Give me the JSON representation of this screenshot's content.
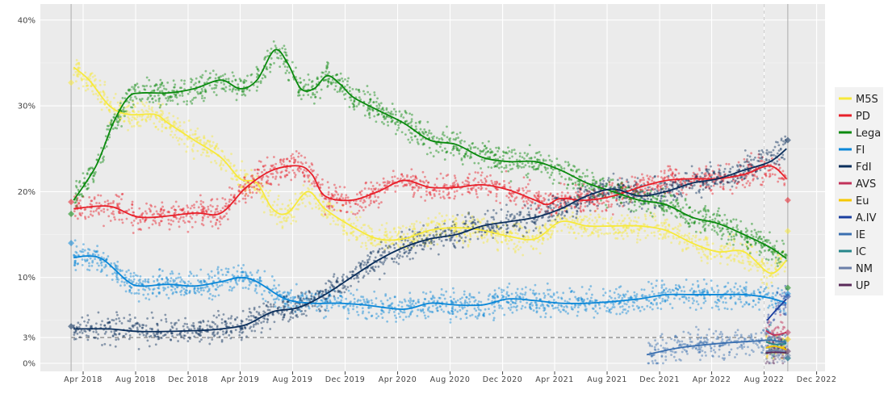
{
  "chart_data": {
    "type": "line",
    "title": "",
    "xlabel": "",
    "ylabel": "",
    "ylim": [
      0,
      40
    ],
    "xlim": [
      "2018-01-01",
      "2022-12-31"
    ],
    "grid": true,
    "legend_position": "right",
    "y_ticks": [
      {
        "v": 0,
        "label": "0%"
      },
      {
        "v": 3,
        "label": "3%"
      },
      {
        "v": 10,
        "label": "10%"
      },
      {
        "v": 20,
        "label": "20%"
      },
      {
        "v": 30,
        "label": "30%"
      },
      {
        "v": 40,
        "label": "40%"
      }
    ],
    "x_ticks": [
      {
        "date": "2018-04-01",
        "label": "Apr 2018"
      },
      {
        "date": "2018-08-01",
        "label": "Aug 2018"
      },
      {
        "date": "2018-12-01",
        "label": "Dec 2018"
      },
      {
        "date": "2019-04-01",
        "label": "Apr 2019"
      },
      {
        "date": "2019-08-01",
        "label": "Aug 2019"
      },
      {
        "date": "2019-12-01",
        "label": "Dec 2019"
      },
      {
        "date": "2020-04-01",
        "label": "Apr 2020"
      },
      {
        "date": "2020-08-01",
        "label": "Aug 2020"
      },
      {
        "date": "2020-12-01",
        "label": "Dec 2020"
      },
      {
        "date": "2021-04-01",
        "label": "Apr 2021"
      },
      {
        "date": "2021-08-01",
        "label": "Aug 2021"
      },
      {
        "date": "2021-12-01",
        "label": "Dec 2021"
      },
      {
        "date": "2022-04-01",
        "label": "Apr 2022"
      },
      {
        "date": "2022-08-01",
        "label": "Aug 2022"
      },
      {
        "date": "2022-12-01",
        "label": "Dec 2022"
      }
    ],
    "threshold": 3,
    "election_dates": [
      "2018-03-04",
      "2022-09-25"
    ],
    "series": [
      {
        "name": "M5S",
        "color": "#f7e93b",
        "points": [
          [
            "2018-03-10",
            34.5
          ],
          [
            "2018-04-15",
            33
          ],
          [
            "2018-06-01",
            30
          ],
          [
            "2018-07-15",
            29
          ],
          [
            "2018-09-15",
            29
          ],
          [
            "2018-10-15",
            28
          ],
          [
            "2018-12-15",
            26
          ],
          [
            "2019-02-15",
            24
          ],
          [
            "2019-04-01",
            21.5
          ],
          [
            "2019-05-10",
            21
          ],
          [
            "2019-06-15",
            18
          ],
          [
            "2019-07-20",
            17.5
          ],
          [
            "2019-09-05",
            20
          ],
          [
            "2019-10-15",
            18
          ],
          [
            "2019-12-15",
            16
          ],
          [
            "2020-02-15",
            14.5
          ],
          [
            "2020-04-15",
            14.5
          ],
          [
            "2020-06-15",
            15.5
          ],
          [
            "2020-08-15",
            15.8
          ],
          [
            "2020-10-15",
            15.5
          ],
          [
            "2020-12-15",
            14.8
          ],
          [
            "2021-02-15",
            14.5
          ],
          [
            "2021-04-15",
            16.5
          ],
          [
            "2021-06-15",
            16
          ],
          [
            "2021-08-15",
            16
          ],
          [
            "2021-10-15",
            16
          ],
          [
            "2021-12-15",
            15.5
          ],
          [
            "2022-02-15",
            14
          ],
          [
            "2022-04-15",
            13
          ],
          [
            "2022-06-15",
            13
          ],
          [
            "2022-08-15",
            10.5
          ],
          [
            "2022-09-22",
            12
          ]
        ]
      },
      {
        "name": "PD",
        "color": "#e8202a",
        "points": [
          [
            "2018-03-10",
            18
          ],
          [
            "2018-06-01",
            18.3
          ],
          [
            "2018-08-15",
            17
          ],
          [
            "2018-12-15",
            17.5
          ],
          [
            "2019-02-15",
            17.5
          ],
          [
            "2019-04-15",
            20.5
          ],
          [
            "2019-06-15",
            22.5
          ],
          [
            "2019-08-15",
            23
          ],
          [
            "2019-09-15",
            22
          ],
          [
            "2019-10-15",
            19.5
          ],
          [
            "2019-12-15",
            19
          ],
          [
            "2020-02-15",
            20
          ],
          [
            "2020-04-15",
            21.3
          ],
          [
            "2020-06-15",
            20.5
          ],
          [
            "2020-08-15",
            20.5
          ],
          [
            "2020-10-15",
            20.8
          ],
          [
            "2020-12-15",
            20.2
          ],
          [
            "2021-02-15",
            19
          ],
          [
            "2021-03-15",
            18.5
          ],
          [
            "2021-04-15",
            19.2
          ],
          [
            "2021-06-15",
            19
          ],
          [
            "2021-08-15",
            19.5
          ],
          [
            "2021-10-15",
            20.5
          ],
          [
            "2021-12-15",
            21.3
          ],
          [
            "2022-02-15",
            21.5
          ],
          [
            "2022-04-15",
            21.5
          ],
          [
            "2022-06-15",
            22
          ],
          [
            "2022-08-15",
            23
          ],
          [
            "2022-09-22",
            21.5
          ]
        ]
      },
      {
        "name": "Lega",
        "color": "#0a8a0e",
        "points": [
          [
            "2018-03-10",
            19
          ],
          [
            "2018-05-01",
            23
          ],
          [
            "2018-06-10",
            28
          ],
          [
            "2018-07-15",
            31
          ],
          [
            "2018-08-15",
            31.5
          ],
          [
            "2018-10-15",
            31.5
          ],
          [
            "2018-12-15",
            32
          ],
          [
            "2019-02-15",
            33
          ],
          [
            "2019-04-01",
            32
          ],
          [
            "2019-05-10",
            33
          ],
          [
            "2019-06-20",
            36.5
          ],
          [
            "2019-07-20",
            35
          ],
          [
            "2019-08-20",
            32
          ],
          [
            "2019-09-20",
            32
          ],
          [
            "2019-10-20",
            33.5
          ],
          [
            "2019-11-20",
            32.5
          ],
          [
            "2019-12-20",
            31
          ],
          [
            "2020-02-15",
            29.5
          ],
          [
            "2020-04-15",
            28
          ],
          [
            "2020-06-15",
            26
          ],
          [
            "2020-08-15",
            25.5
          ],
          [
            "2020-10-15",
            24
          ],
          [
            "2020-12-15",
            23.5
          ],
          [
            "2021-02-15",
            23.5
          ],
          [
            "2021-04-15",
            22.5
          ],
          [
            "2021-06-15",
            21
          ],
          [
            "2021-08-15",
            20
          ],
          [
            "2021-10-15",
            19
          ],
          [
            "2021-12-15",
            18.5
          ],
          [
            "2022-02-15",
            17
          ],
          [
            "2022-04-15",
            16.3
          ],
          [
            "2022-06-15",
            15
          ],
          [
            "2022-08-15",
            13.5
          ],
          [
            "2022-09-22",
            12.2
          ]
        ]
      },
      {
        "name": "FI",
        "color": "#0a87d8",
        "points": [
          [
            "2018-03-10",
            12.3
          ],
          [
            "2018-04-15",
            12.5
          ],
          [
            "2018-05-20",
            12
          ],
          [
            "2018-07-15",
            9.5
          ],
          [
            "2018-08-15",
            9
          ],
          [
            "2018-10-15",
            9.2
          ],
          [
            "2018-12-15",
            9
          ],
          [
            "2019-02-15",
            9.5
          ],
          [
            "2019-04-01",
            10
          ],
          [
            "2019-05-10",
            9.5
          ],
          [
            "2019-07-15",
            7.5
          ],
          [
            "2019-09-15",
            7
          ],
          [
            "2019-11-15",
            7
          ],
          [
            "2020-01-15",
            6.8
          ],
          [
            "2020-04-15",
            6.3
          ],
          [
            "2020-06-15",
            7
          ],
          [
            "2020-08-15",
            6.8
          ],
          [
            "2020-10-15",
            6.8
          ],
          [
            "2020-12-15",
            7.5
          ],
          [
            "2021-02-15",
            7.3
          ],
          [
            "2021-04-15",
            7
          ],
          [
            "2021-06-15",
            7
          ],
          [
            "2021-08-15",
            7.2
          ],
          [
            "2021-10-15",
            7.5
          ],
          [
            "2021-12-15",
            8
          ],
          [
            "2022-02-15",
            8
          ],
          [
            "2022-04-15",
            8
          ],
          [
            "2022-06-15",
            8
          ],
          [
            "2022-08-15",
            7.6
          ],
          [
            "2022-09-22",
            7
          ]
        ]
      },
      {
        "name": "FdI",
        "color": "#0b2f5c",
        "points": [
          [
            "2018-03-10",
            4
          ],
          [
            "2018-06-01",
            4
          ],
          [
            "2018-08-15",
            3.7
          ],
          [
            "2018-12-15",
            3.8
          ],
          [
            "2019-02-15",
            4
          ],
          [
            "2019-04-15",
            4.5
          ],
          [
            "2019-06-15",
            6
          ],
          [
            "2019-08-15",
            6.5
          ],
          [
            "2019-10-15",
            8
          ],
          [
            "2019-12-15",
            10
          ],
          [
            "2020-02-15",
            12
          ],
          [
            "2020-04-15",
            13.5
          ],
          [
            "2020-06-15",
            14.5
          ],
          [
            "2020-08-15",
            15
          ],
          [
            "2020-10-15",
            16
          ],
          [
            "2020-12-15",
            16.5
          ],
          [
            "2021-02-15",
            17
          ],
          [
            "2021-04-15",
            18
          ],
          [
            "2021-06-15",
            19.5
          ],
          [
            "2021-08-15",
            20.3
          ],
          [
            "2021-10-15",
            19.5
          ],
          [
            "2021-12-15",
            20
          ],
          [
            "2022-02-15",
            21
          ],
          [
            "2022-04-15",
            21.5
          ],
          [
            "2022-06-15",
            22.5
          ],
          [
            "2022-08-15",
            23.5
          ],
          [
            "2022-09-22",
            25
          ]
        ]
      },
      {
        "name": "AVS",
        "color": "#c2325a",
        "points": [
          [
            "2022-08-05",
            3.8
          ],
          [
            "2022-08-25",
            3.3
          ],
          [
            "2022-09-22",
            3.6
          ]
        ]
      },
      {
        "name": "Eu",
        "color": "#f5c800",
        "points": [
          [
            "2022-08-05",
            1.8
          ],
          [
            "2022-08-25",
            2
          ],
          [
            "2022-09-22",
            1.6
          ]
        ]
      },
      {
        "name": "A.IV",
        "color": "#1b3fa0",
        "points": [
          [
            "2022-08-08",
            5
          ],
          [
            "2022-08-25",
            6
          ],
          [
            "2022-09-22",
            7.5
          ]
        ]
      },
      {
        "name": "IE",
        "color": "#3a6fb0",
        "points": [
          [
            "2021-11-01",
            1
          ],
          [
            "2022-01-15",
            1.8
          ],
          [
            "2022-04-15",
            2.3
          ],
          [
            "2022-07-15",
            2.6
          ],
          [
            "2022-08-15",
            2.7
          ],
          [
            "2022-09-22",
            2.4
          ]
        ]
      },
      {
        "name": "IC",
        "color": "#26868a",
        "points": [
          [
            "2022-08-05",
            2.5
          ],
          [
            "2022-08-25",
            2.2
          ],
          [
            "2022-09-22",
            2.3
          ]
        ]
      },
      {
        "name": "NM",
        "color": "#6b7fa8",
        "points": [
          [
            "2022-08-05",
            1.4
          ],
          [
            "2022-08-25",
            1.5
          ],
          [
            "2022-09-22",
            1.3
          ]
        ]
      },
      {
        "name": "UP",
        "color": "#5a2a5a",
        "points": [
          [
            "2022-08-05",
            1.2
          ],
          [
            "2022-08-25",
            1.3
          ],
          [
            "2022-09-22",
            1.2
          ]
        ]
      }
    ],
    "election_results": [
      {
        "date": "2018-03-04",
        "values": {
          "M5S": 32.7,
          "PD": 18.8,
          "Lega": 17.4,
          "FI": 14,
          "FdI": 4.3
        }
      },
      {
        "date": "2022-09-25",
        "values": {
          "FdI": 26,
          "PD": 19,
          "M5S": 15.4,
          "Lega": 8.8,
          "FI": 8.1,
          "A.IV": 7.8,
          "AVS": 3.6,
          "Eu": 2.8,
          "IE": 0.6,
          "IC": 0.6,
          "NM": 0.9,
          "UP": 1.4
        }
      }
    ]
  }
}
